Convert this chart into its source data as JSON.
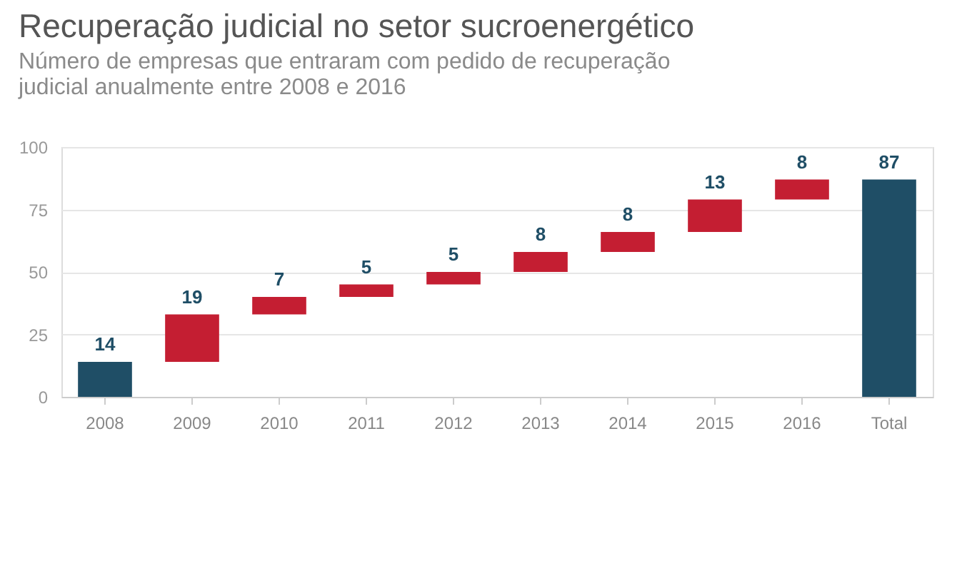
{
  "chart_data": {
    "type": "bar",
    "title": "Recuperação judicial no setor sucroenergético",
    "subtitle": "Número de empresas que entraram com pedido de recuperação judicial anualmente entre 2008 e 2016",
    "categories": [
      "2008",
      "2009",
      "2010",
      "2011",
      "2012",
      "2013",
      "2014",
      "2015",
      "2016",
      "Total"
    ],
    "values": [
      14,
      19,
      7,
      5,
      5,
      8,
      8,
      13,
      8,
      87
    ],
    "base": [
      0,
      14,
      33,
      40,
      45,
      50,
      58,
      66,
      79,
      0
    ],
    "colors": [
      "#1f4e66",
      "#c41e32",
      "#c41e32",
      "#c41e32",
      "#c41e32",
      "#c41e32",
      "#c41e32",
      "#c41e32",
      "#c41e32",
      "#1f4e66"
    ],
    "data_labels": true,
    "ylim": [
      0,
      100
    ],
    "yticks": [
      0,
      25,
      50,
      75,
      100
    ],
    "grid": "y"
  }
}
